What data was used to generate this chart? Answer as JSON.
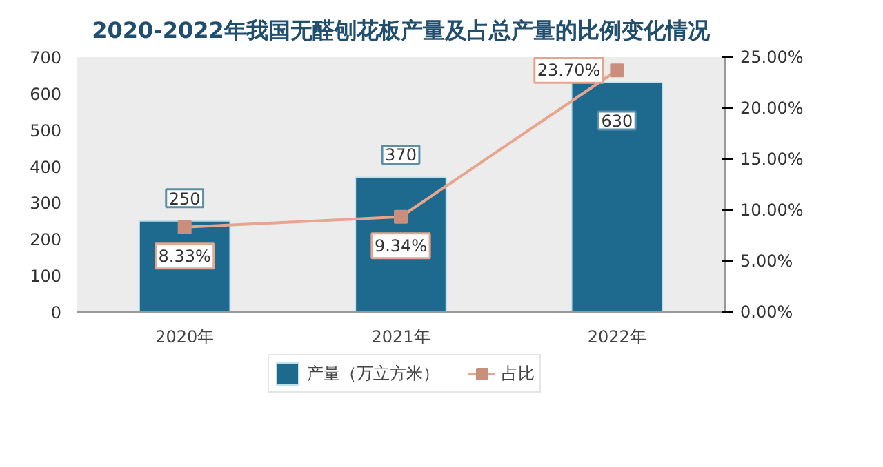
{
  "chart_data": {
    "type": "bar",
    "title": "2020-2022年我国无醛刨花板产量及占总产量的比例变化情况",
    "categories": [
      "2020年",
      "2021年",
      "2022年"
    ],
    "series": [
      {
        "name": "产量（万立方米）",
        "color": "#1d6a8e",
        "values": [
          250,
          370,
          630
        ],
        "value_labels": [
          "250",
          "370",
          "630"
        ]
      },
      {
        "name": "占比",
        "type": "line",
        "axis": "y2",
        "color": "#e8a58e",
        "values": [
          8.33,
          9.34,
          23.7
        ],
        "value_labels": [
          "8.33%",
          "9.34%",
          "23.70%"
        ],
        "marker": "square"
      }
    ],
    "ylim": [
      0,
      700
    ],
    "yticks": [
      0,
      100,
      200,
      300,
      400,
      500,
      600,
      700
    ],
    "y2lim": [
      0,
      25
    ],
    "y2ticks": [
      {
        "value": 0,
        "label": "0.00%"
      },
      {
        "value": 5,
        "label": "5.00%"
      },
      {
        "value": 10,
        "label": "10.00%"
      },
      {
        "value": 15,
        "label": "15.00%"
      },
      {
        "value": 20,
        "label": "20.00%"
      },
      {
        "value": 25,
        "label": "25.00%"
      }
    ],
    "grid": false,
    "legend": "bottom"
  }
}
